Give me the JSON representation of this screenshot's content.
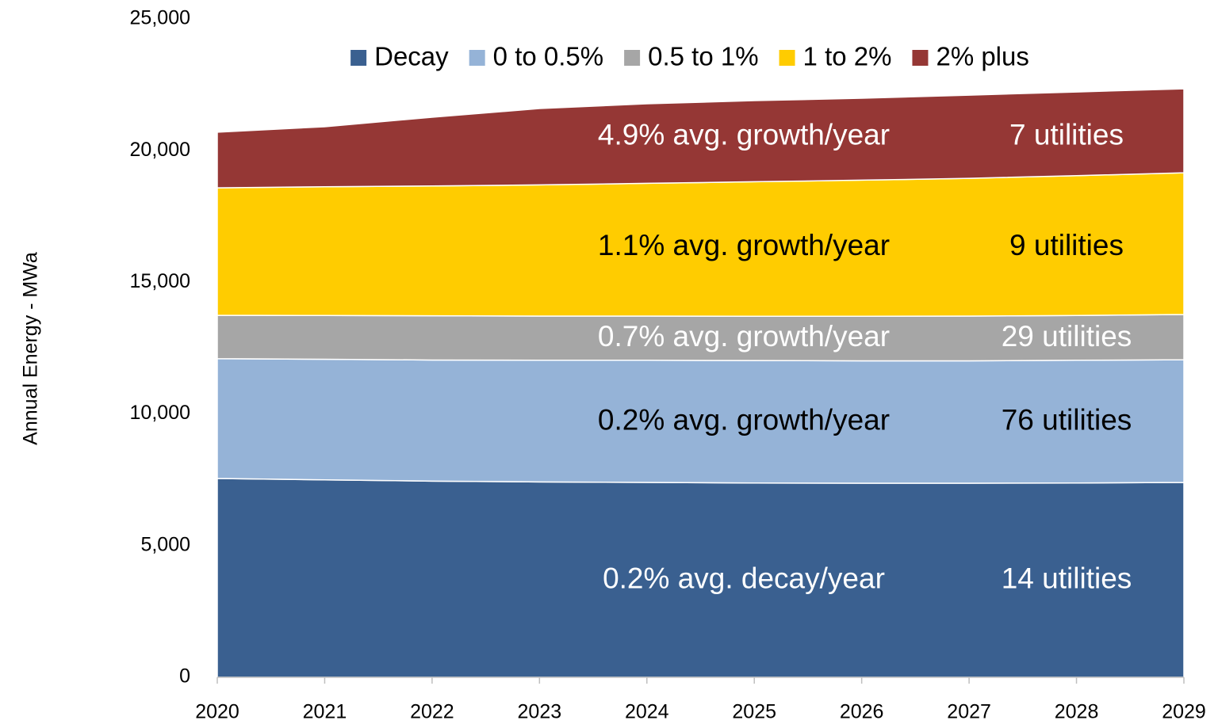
{
  "chart_data": {
    "type": "area",
    "stacked": true,
    "y_label": "Annual Energy - MWa",
    "categories": [
      "2020",
      "2021",
      "2022",
      "2023",
      "2024",
      "2025",
      "2026",
      "2027",
      "2028",
      "2029"
    ],
    "series": [
      {
        "name": "Decay",
        "color": "#3a6090",
        "values": [
          7550,
          7500,
          7450,
          7420,
          7400,
          7380,
          7370,
          7370,
          7380,
          7400
        ]
      },
      {
        "name": "0 to 0.5%",
        "color": "#95b3d7",
        "values": [
          4550,
          4580,
          4600,
          4620,
          4640,
          4650,
          4650,
          4650,
          4660,
          4660
        ]
      },
      {
        "name": "0.5 to 1%",
        "color": "#a6a6a6",
        "values": [
          1650,
          1660,
          1680,
          1680,
          1680,
          1680,
          1690,
          1700,
          1700,
          1720
        ]
      },
      {
        "name": "1 to 2%",
        "color": "#ffcc00",
        "values": [
          4840,
          4890,
          4930,
          4980,
          5040,
          5110,
          5170,
          5230,
          5310,
          5380
        ]
      },
      {
        "name": "2% plus",
        "color": "#953735",
        "values": [
          2110,
          2280,
          2610,
          2900,
          3020,
          3080,
          3110,
          3160,
          3180,
          3190
        ]
      }
    ],
    "annotations": [
      {
        "text": "0.2% avg. decay/year",
        "count": "14 utilities",
        "color": "#ffffff"
      },
      {
        "text": "0.2% avg. growth/year",
        "count": "76 utilities",
        "color": "#000000"
      },
      {
        "text": "0.7% avg. growth/year",
        "count": "29 utilities",
        "color": "#ffffff"
      },
      {
        "text": "1.1% avg. growth/year",
        "count": "9 utilities",
        "color": "#000000"
      },
      {
        "text": "4.9% avg. growth/year",
        "count": "7 utilities",
        "color": "#ffffff"
      }
    ],
    "ylim": [
      0,
      25000
    ],
    "yticks": [
      0,
      {
        "value": 5000,
        "label": "5,000"
      },
      {
        "value": 10000,
        "label": "10,000"
      },
      {
        "value": 15000,
        "label": "15,000"
      },
      {
        "value": 20000,
        "label": "20,000"
      },
      {
        "value": 25000,
        "label": "25,000"
      }
    ],
    "legend": "top"
  }
}
